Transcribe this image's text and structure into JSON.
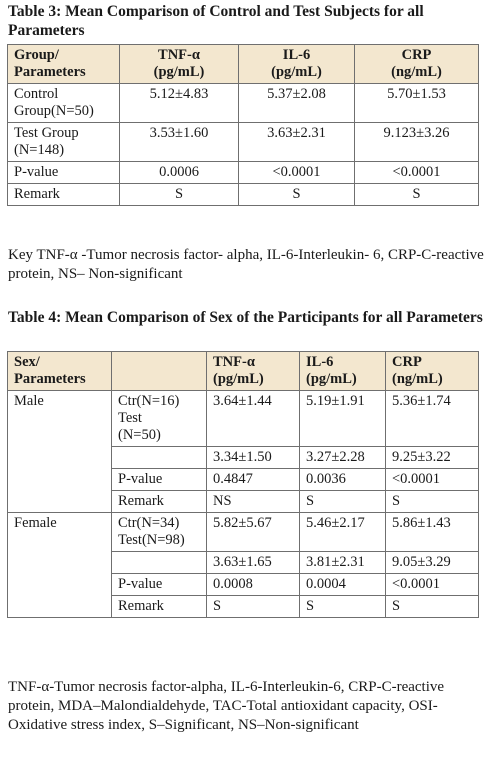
{
  "table3": {
    "caption": "Table 3: Mean Comparison of Control and Test Subjects for all Parameters",
    "headers": [
      {
        "line1": "Group/",
        "line2": "Parameters"
      },
      {
        "line1": "TNF-α",
        "line2": "(pg/mL)"
      },
      {
        "line1": "IL-6",
        "line2": "(pg/mL)"
      },
      {
        "line1": "CRP",
        "line2": "(ng/mL)"
      }
    ],
    "rows": [
      {
        "group_line1": "Control",
        "group_line2": "Group(N=50)",
        "tnf": "5.12±4.83",
        "il6": "5.37±2.08",
        "crp": "5.70±1.53"
      },
      {
        "group_line1": "Test Group",
        "group_line2": "(N=148)",
        "tnf": "3.53±1.60",
        "il6": "3.63±2.31",
        "crp": "9.123±3.26"
      },
      {
        "group_line1": "P-value",
        "group_line2": "",
        "tnf": "0.0006",
        "il6": "<0.0001",
        "crp": "<0.0001"
      },
      {
        "group_line1": "Remark",
        "group_line2": "",
        "tnf": "S",
        "il6": "S",
        "crp": "S"
      }
    ],
    "key": "Key TNF-α -Tumor necrosis factor- alpha, IL-6-Interleukin- 6, CRP-C-reactive protein, NS– Non-significant"
  },
  "table4": {
    "caption": "Table 4: Mean Comparison of Sex of the Participants for all Parameters",
    "headers": [
      {
        "line1": "Sex/",
        "line2": "Parameters"
      },
      {
        "line1": "TNF-α",
        "line2": "(pg/mL)"
      },
      {
        "line1": "IL-6",
        "line2": "(pg/mL)"
      },
      {
        "line1": "CRP",
        "line2": "(ng/mL)"
      }
    ],
    "male": {
      "label": "Male",
      "rows": [
        {
          "label_line1": "Ctr(N=16)",
          "label_line2": "Test",
          "label_line3": "(N=50)",
          "tnf": "3.64±1.44",
          "il6": "5.19±1.91",
          "crp": "5.36±1.74"
        },
        {
          "label_line1": "",
          "label_line2": "",
          "label_line3": "",
          "tnf": "3.34±1.50",
          "il6": "3.27±2.28",
          "crp": "9.25±3.22"
        },
        {
          "label_line1": "P-value",
          "label_line2": "",
          "label_line3": "",
          "tnf": "0.4847",
          "il6": "0.0036",
          "crp": "<0.0001"
        },
        {
          "label_line1": "Remark",
          "label_line2": "",
          "label_line3": "",
          "tnf": "NS",
          "il6": "S",
          "crp": "S"
        }
      ]
    },
    "female": {
      "label": "Female",
      "rows": [
        {
          "label_line1": "Ctr(N=34)",
          "label_line2": "Test(N=98)",
          "label_line3": "",
          "tnf": "5.82±5.67",
          "il6": "5.46±2.17",
          "crp": "5.86±1.43"
        },
        {
          "label_line1": "",
          "label_line2": "",
          "label_line3": "",
          "tnf": "3.63±1.65",
          "il6": "3.81±2.31",
          "crp": "9.05±3.29"
        },
        {
          "label_line1": "P-value",
          "label_line2": "",
          "label_line3": "",
          "tnf": "0.0008",
          "il6": "0.0004",
          "crp": "<0.0001"
        },
        {
          "label_line1": "Remark",
          "label_line2": "",
          "label_line3": "",
          "tnf": "S",
          "il6": "S",
          "crp": "S"
        }
      ]
    },
    "key": "TNF-α-Tumor necrosis factor-alpha, IL-6-Interleukin-6, CRP-C-reactive protein, MDA–Malondialdehyde, TAC-Total antioxidant capacity, OSI-Oxidative stress index, S–Significant, NS–Non-significant"
  }
}
